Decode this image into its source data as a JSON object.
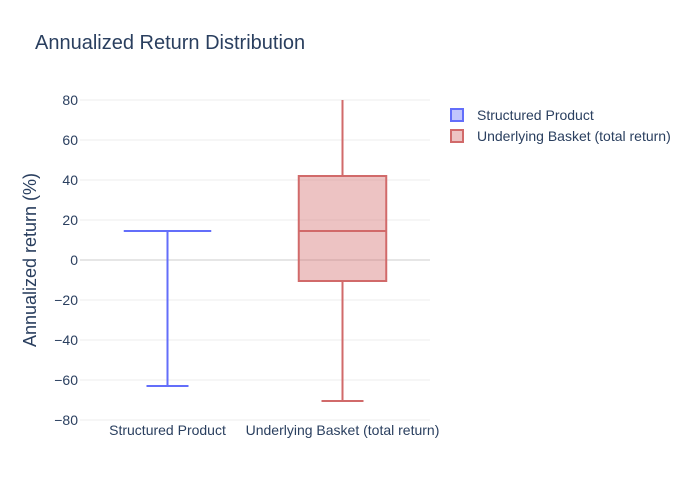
{
  "chart_data": {
    "type": "box",
    "title": "Annualized Return Distribution",
    "xlabel": "",
    "ylabel": "Annualized return (%)",
    "ylim": [
      -80,
      80
    ],
    "yticks": [
      80,
      60,
      40,
      20,
      0,
      -20,
      -40,
      -60,
      -80
    ],
    "grid": true,
    "legend_position": "top-right",
    "categories": [
      "Structured Product",
      "Underlying Basket (total return)"
    ],
    "series": [
      {
        "name": "Structured Product",
        "min": -63,
        "q1": 14.5,
        "median": 14.5,
        "q3": 14.5,
        "max": 14.5,
        "color": "#636efa"
      },
      {
        "name": "Underlying Basket (total return)",
        "min": -70.5,
        "q1": -10.5,
        "median": 14.5,
        "q3": 42,
        "max": 80,
        "color": "#d16a6a"
      }
    ]
  }
}
